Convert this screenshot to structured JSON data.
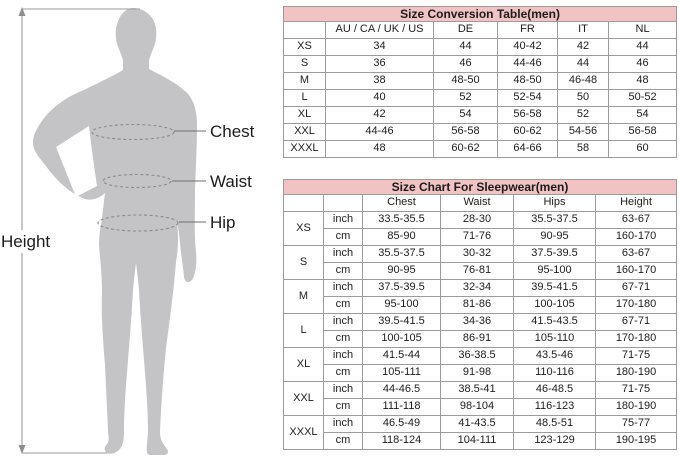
{
  "diagram": {
    "labels": {
      "chest": "Chest",
      "waist": "Waist",
      "hip": "Hip",
      "height": "Height"
    }
  },
  "conversion_table": {
    "title": "Size Conversion Table(men)",
    "columns": [
      "",
      "AU / CA / UK / US",
      "DE",
      "FR",
      "IT",
      "NL"
    ],
    "rows": [
      {
        "size": "XS",
        "values": [
          "34",
          "44",
          "40-42",
          "42",
          "44"
        ]
      },
      {
        "size": "S",
        "values": [
          "36",
          "46",
          "44-46",
          "44",
          "46"
        ]
      },
      {
        "size": "M",
        "values": [
          "38",
          "48-50",
          "48-50",
          "46-48",
          "48"
        ]
      },
      {
        "size": "L",
        "values": [
          "40",
          "52",
          "52-54",
          "50",
          "50-52"
        ]
      },
      {
        "size": "XL",
        "values": [
          "42",
          "54",
          "56-58",
          "52",
          "54"
        ]
      },
      {
        "size": "XXL",
        "values": [
          "44-46",
          "56-58",
          "60-62",
          "54-56",
          "56-58"
        ]
      },
      {
        "size": "XXXL",
        "values": [
          "48",
          "60-62",
          "64-66",
          "58",
          "60"
        ]
      }
    ]
  },
  "sleepwear_table": {
    "title": "Size Chart For Sleepwear(men)",
    "columns": [
      "",
      "",
      "Chest",
      "Waist",
      "Hips",
      "Height"
    ],
    "unit_labels": [
      "inch",
      "cm"
    ],
    "rows": [
      {
        "size": "XS",
        "inch": [
          "33.5-35.5",
          "28-30",
          "35.5-37.5",
          "63-67"
        ],
        "cm": [
          "85-90",
          "71-76",
          "90-95",
          "160-170"
        ]
      },
      {
        "size": "S",
        "inch": [
          "35.5-37.5",
          "30-32",
          "37.5-39.5",
          "63-67"
        ],
        "cm": [
          "90-95",
          "76-81",
          "95-100",
          "160-170"
        ]
      },
      {
        "size": "M",
        "inch": [
          "37.5-39.5",
          "32-34",
          "39.5-41.5",
          "67-71"
        ],
        "cm": [
          "95-100",
          "81-86",
          "100-105",
          "170-180"
        ]
      },
      {
        "size": "L",
        "inch": [
          "39.5-41.5",
          "34-36",
          "41.5-43.5",
          "67-71"
        ],
        "cm": [
          "100-105",
          "86-91",
          "105-110",
          "170-180"
        ]
      },
      {
        "size": "XL",
        "inch": [
          "41.5-44",
          "36-38.5",
          "43.5-46",
          "71-75"
        ],
        "cm": [
          "105-111",
          "91-98",
          "110-116",
          "180-190"
        ]
      },
      {
        "size": "XXL",
        "inch": [
          "44-46.5",
          "38.5-41",
          "46-48.5",
          "71-75"
        ],
        "cm": [
          "111-118",
          "98-104",
          "116-123",
          "180-190"
        ]
      },
      {
        "size": "XXXL",
        "inch": [
          "46.5-49",
          "41-43.5",
          "48.5-51",
          "75-77"
        ],
        "cm": [
          "118-124",
          "104-111",
          "123-129",
          "190-195"
        ]
      }
    ]
  },
  "colors": {
    "title_bg": "#f2c3c3",
    "table_border": "#9b9b9b",
    "silhouette": "#c4c4c6",
    "dashed_line": "#8b8b8b",
    "dimension_line": "#8f8f8f",
    "text": "#1c1c1c"
  }
}
